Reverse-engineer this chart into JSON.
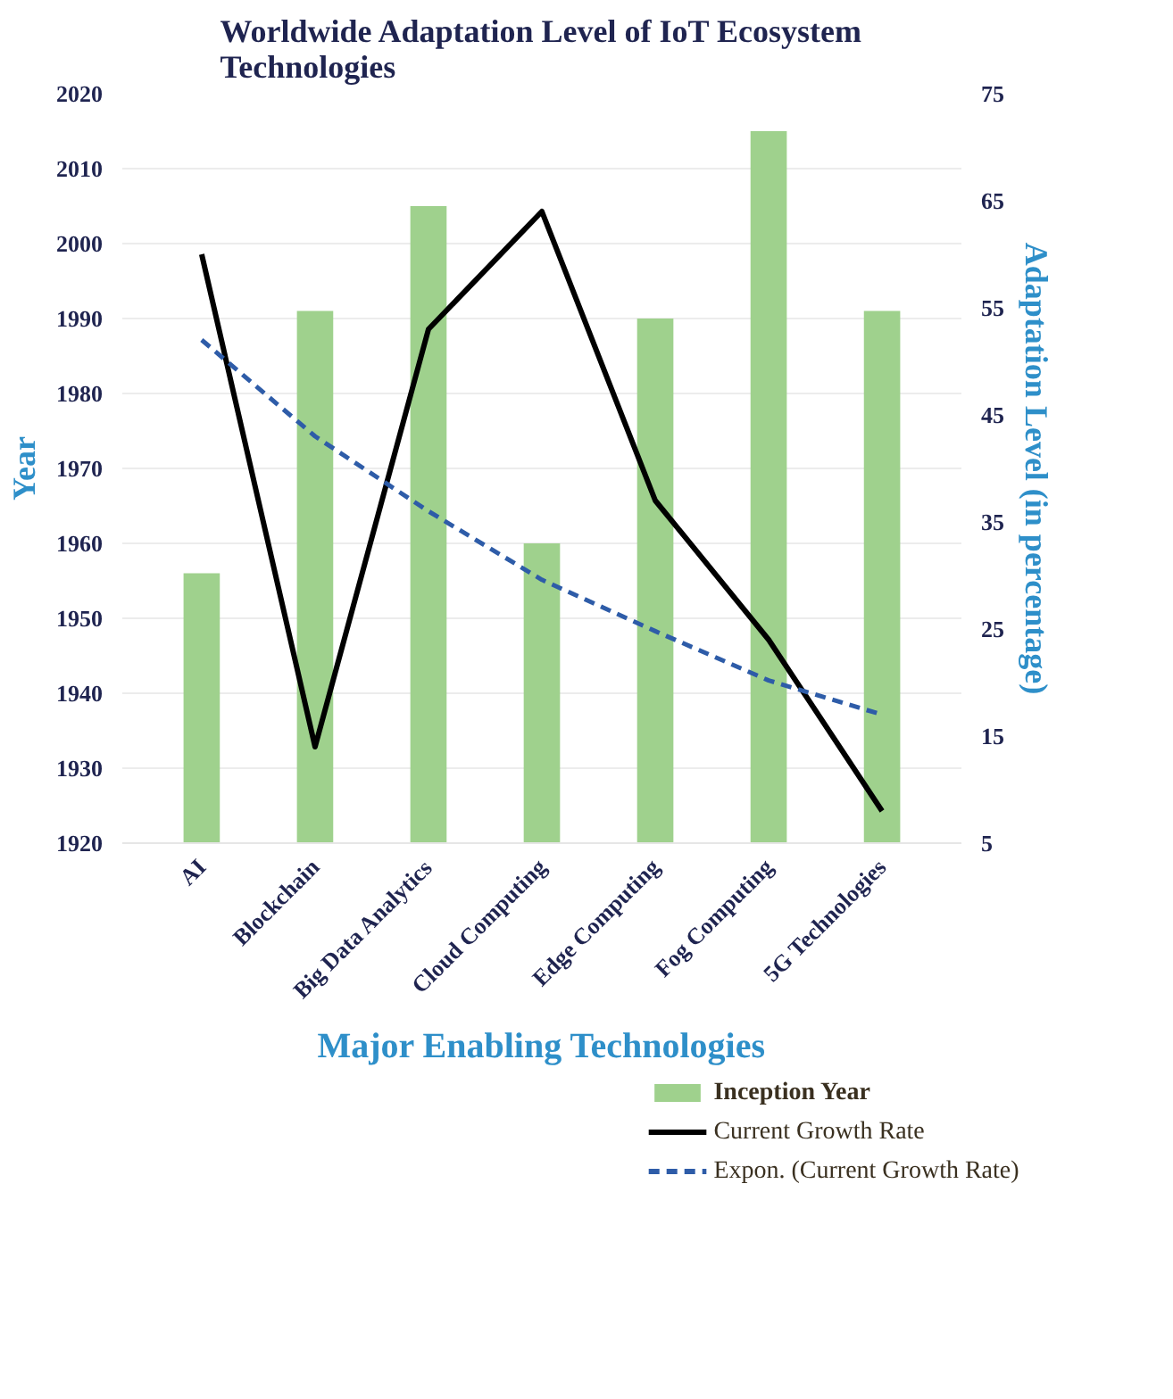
{
  "chart_data": {
    "type": "bar",
    "title": "Worldwide Adaptation Level of IoT Ecosystem Technologies",
    "xlabel": "Major Enabling Technologies",
    "ylabel": "Year",
    "y2label": "Adaptation Level (in percentage)",
    "categories": [
      "AI",
      "Blockchain",
      "Big Data Analytics",
      "Cloud Computing",
      "Edge Computing",
      "Fog Computing",
      "5G Technologies"
    ],
    "series": [
      {
        "name": "Inception Year",
        "type": "bar",
        "color": "#9fd18d",
        "values": [
          1956,
          1991,
          2005,
          1960,
          1990,
          2015,
          1991
        ]
      },
      {
        "name": "Current Growth Rate",
        "type": "line",
        "axis": "y2",
        "color": "#000000",
        "line_style": "solid",
        "values": [
          60,
          14,
          53,
          64,
          37,
          24,
          8
        ]
      },
      {
        "name": "Expon. (Current Growth Rate)",
        "type": "line",
        "axis": "y2",
        "color": "#2e5ca8",
        "line_style": "dashed",
        "values": [
          52,
          43,
          36,
          29.6,
          24.8,
          20.2,
          17
        ]
      }
    ],
    "ylim": [
      1920,
      2020
    ],
    "yticks": [
      1920,
      1930,
      1940,
      1950,
      1960,
      1970,
      1980,
      1990,
      2000,
      2010,
      2020
    ],
    "y2lim": [
      5,
      75
    ],
    "y2ticks": [
      5,
      15,
      25,
      35,
      45,
      55,
      65,
      75
    ],
    "grid": "y",
    "legend": "bottom"
  }
}
